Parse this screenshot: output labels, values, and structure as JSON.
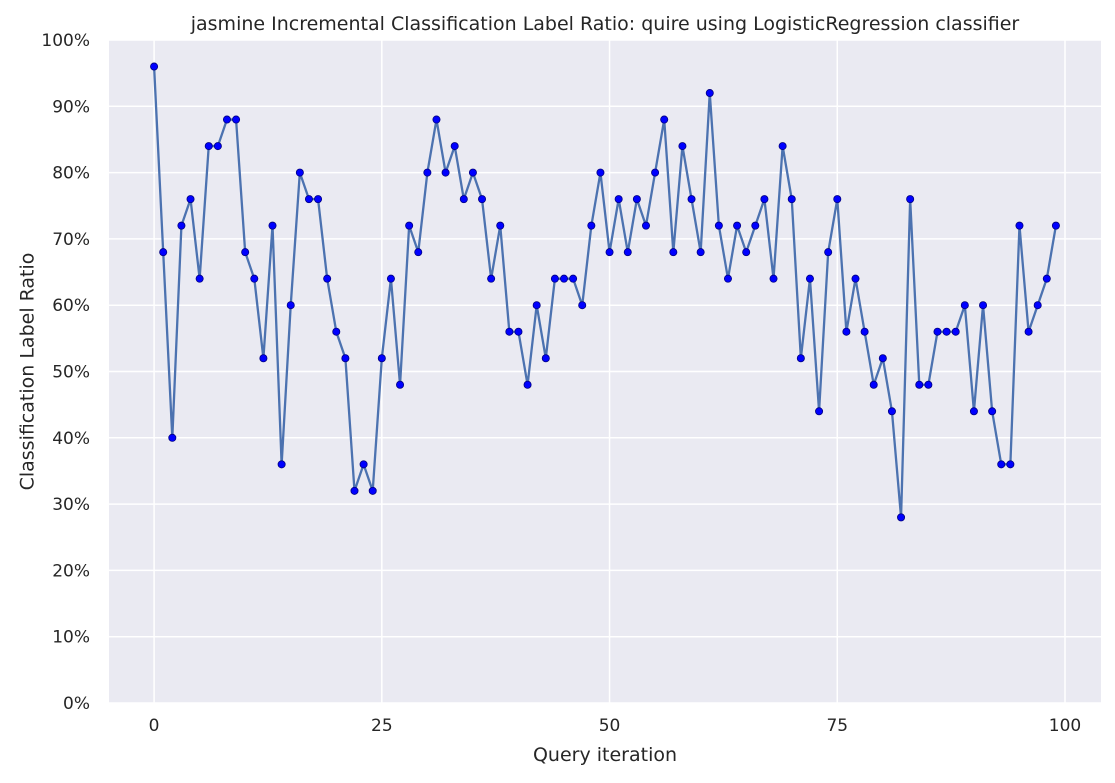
{
  "chart_data": {
    "type": "line",
    "title": "jasmine Incremental Classification Label Ratio: quire using LogisticRegression classifier",
    "xlabel": "Query iteration",
    "ylabel": "Classification Label Ratio",
    "xlim": [
      -4.95,
      103.95
    ],
    "ylim": [
      0,
      1
    ],
    "xticks": [
      0,
      25,
      50,
      75,
      100
    ],
    "xtick_labels": [
      "0",
      "25",
      "50",
      "75",
      "100"
    ],
    "yticks": [
      0,
      0.1,
      0.2,
      0.3,
      0.4,
      0.5,
      0.6,
      0.7,
      0.8,
      0.9,
      1.0
    ],
    "ytick_labels": [
      "0%",
      "10%",
      "20%",
      "30%",
      "40%",
      "50%",
      "60%",
      "70%",
      "80%",
      "90%",
      "100%"
    ],
    "grid": true,
    "colors": {
      "background": "#eaeaf2",
      "grid": "#ffffff",
      "line": "#4c72b0",
      "marker": "#0000ff"
    },
    "series": [
      {
        "x": [
          0,
          1,
          2,
          3,
          4,
          5,
          6,
          7,
          8,
          9,
          10,
          11,
          12,
          13,
          14,
          15,
          16,
          17,
          18,
          19,
          20,
          21,
          22,
          23,
          24,
          25,
          26,
          27,
          28,
          29,
          30,
          31,
          32,
          33,
          34,
          35,
          36,
          37,
          38,
          39,
          40,
          41,
          42,
          43,
          44,
          45,
          46,
          47,
          48,
          49,
          50,
          51,
          52,
          53,
          54,
          55,
          56,
          57,
          58,
          59,
          60,
          61,
          62,
          63,
          64,
          65,
          66,
          67,
          68,
          69,
          70,
          71,
          72,
          73,
          74,
          75,
          76,
          77,
          78,
          79,
          80,
          81,
          82,
          83,
          84,
          85,
          86,
          87,
          88,
          89,
          90,
          91,
          92,
          93,
          94,
          95,
          96,
          97,
          98,
          99
        ],
        "values": [
          0.96,
          0.68,
          0.4,
          0.72,
          0.76,
          0.64,
          0.84,
          0.84,
          0.88,
          0.88,
          0.68,
          0.64,
          0.52,
          0.72,
          0.36,
          0.6,
          0.8,
          0.76,
          0.76,
          0.64,
          0.56,
          0.52,
          0.32,
          0.36,
          0.32,
          0.52,
          0.64,
          0.48,
          0.72,
          0.68,
          0.8,
          0.88,
          0.8,
          0.84,
          0.76,
          0.8,
          0.76,
          0.64,
          0.72,
          0.56,
          0.56,
          0.48,
          0.6,
          0.52,
          0.64,
          0.64,
          0.64,
          0.6,
          0.72,
          0.8,
          0.68,
          0.76,
          0.68,
          0.76,
          0.72,
          0.8,
          0.88,
          0.68,
          0.84,
          0.76,
          0.68,
          0.92,
          0.72,
          0.64,
          0.72,
          0.68,
          0.72,
          0.76,
          0.64,
          0.84,
          0.76,
          0.52,
          0.64,
          0.44,
          0.68,
          0.76,
          0.56,
          0.64,
          0.56,
          0.48,
          0.52,
          0.44,
          0.28,
          0.76,
          0.48,
          0.48,
          0.56,
          0.56,
          0.56,
          0.6,
          0.44,
          0.6,
          0.44,
          0.36,
          0.36,
          0.72,
          0.56,
          0.6,
          0.64,
          0.72
        ]
      }
    ]
  }
}
